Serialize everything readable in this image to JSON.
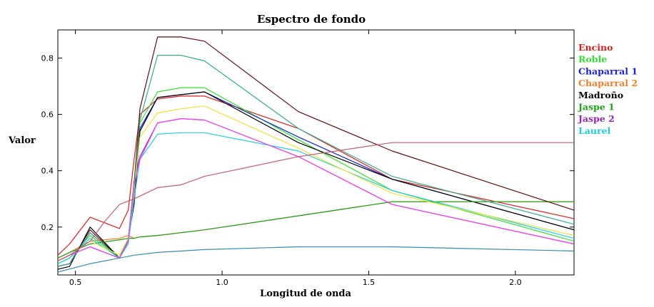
{
  "chart_data": {
    "type": "line",
    "title": "Espectro de fondo",
    "xlabel": "Longitud de onda",
    "ylabel": "Valor",
    "xlim": [
      0.44,
      2.2
    ],
    "ylim": [
      0.03,
      0.9
    ],
    "xticks": [
      0.5,
      1.0,
      1.5,
      2.0
    ],
    "xtick_labels": [
      "0.5",
      "1.0",
      "1.5",
      "2.0"
    ],
    "yticks": [
      0.2,
      0.4,
      0.6,
      0.8
    ],
    "ytick_labels": [
      "0.2",
      "0.4",
      "0.6",
      "0.8"
    ],
    "grid": false,
    "legend_position": "right",
    "series": [
      {
        "name": "Encino",
        "color": "#d42020",
        "x": [
          0.44,
          0.48,
          0.55,
          0.65,
          0.68,
          0.7,
          0.72,
          0.78,
          0.86,
          0.94,
          1.26,
          1.58,
          2.2
        ],
        "y": [
          0.1,
          0.14,
          0.235,
          0.195,
          0.26,
          0.44,
          0.6,
          0.655,
          0.665,
          0.665,
          0.55,
          0.37,
          0.23
        ]
      },
      {
        "name": "Roble",
        "color": "#33dd33",
        "x": [
          0.44,
          0.48,
          0.55,
          0.65,
          0.68,
          0.7,
          0.72,
          0.78,
          0.86,
          0.94,
          1.26,
          1.58,
          2.2
        ],
        "y": [
          0.07,
          0.09,
          0.17,
          0.09,
          0.15,
          0.36,
          0.57,
          0.68,
          0.695,
          0.695,
          0.51,
          0.33,
          0.15
        ]
      },
      {
        "name": "Chaparral 1",
        "color": "#1a24c8",
        "x": [
          0.44,
          0.48,
          0.55,
          0.65,
          0.68,
          0.7,
          0.72,
          0.78,
          0.86,
          0.94,
          1.26,
          1.58,
          2.2
        ],
        "y": [
          0.06,
          0.07,
          0.18,
          0.09,
          0.15,
          0.32,
          0.55,
          0.66,
          0.67,
          0.68,
          0.52,
          0.37,
          0.19
        ]
      },
      {
        "name": "Chaparral 2",
        "color": "#f08030",
        "x": [
          0.44,
          0.48,
          0.55,
          0.65,
          0.68,
          0.7,
          0.72,
          0.78,
          0.86,
          0.94,
          1.26,
          1.58,
          2.2
        ],
        "y": [
          0.09,
          0.11,
          0.15,
          0.16,
          0.17,
          0.16,
          0.165,
          0.17,
          0.18,
          0.19,
          0.24,
          0.29,
          0.29
        ]
      },
      {
        "name": "Madroño",
        "color": "#000000",
        "x": [
          0.44,
          0.48,
          0.55,
          0.65,
          0.68,
          0.7,
          0.72,
          0.78,
          0.86,
          0.94,
          1.26,
          1.58,
          2.2
        ],
        "y": [
          0.05,
          0.06,
          0.2,
          0.09,
          0.16,
          0.28,
          0.54,
          0.66,
          0.67,
          0.68,
          0.5,
          0.37,
          0.19
        ]
      },
      {
        "name": "Jaspe 1",
        "color": "#1e9e1e",
        "x": [
          0.44,
          0.48,
          0.55,
          0.65,
          0.68,
          0.7,
          0.72,
          0.78,
          0.86,
          0.94,
          1.26,
          1.58,
          2.2
        ],
        "y": [
          0.09,
          0.11,
          0.14,
          0.155,
          0.16,
          0.16,
          0.165,
          0.17,
          0.18,
          0.19,
          0.24,
          0.29,
          0.29
        ]
      },
      {
        "name": "Jaspe 2",
        "color": "#8a2ab0",
        "x": [
          0.44,
          0.48,
          0.55,
          0.65,
          0.68,
          0.7,
          0.72,
          0.78,
          0.86,
          0.94,
          1.26,
          1.58,
          2.2
        ],
        "y": [
          0.08,
          0.1,
          0.13,
          0.09,
          0.15,
          0.36,
          0.45,
          0.57,
          0.585,
          0.58,
          0.45,
          0.28,
          0.14
        ]
      },
      {
        "name": "Laurel",
        "color": "#22ccdd",
        "x": [
          0.44,
          0.48,
          0.55,
          0.65,
          0.68,
          0.7,
          0.72,
          0.78,
          0.86,
          0.94,
          1.26,
          1.58,
          2.2
        ],
        "y": [
          0.07,
          0.09,
          0.16,
          0.09,
          0.14,
          0.3,
          0.44,
          0.53,
          0.535,
          0.535,
          0.47,
          0.33,
          0.16
        ]
      },
      {
        "color": "#5a1010",
        "x": [
          0.44,
          0.48,
          0.55,
          0.65,
          0.68,
          0.7,
          0.72,
          0.78,
          0.86,
          0.94,
          1.26,
          1.58,
          2.2
        ],
        "y": [
          0.06,
          0.07,
          0.19,
          0.09,
          0.16,
          0.35,
          0.62,
          0.875,
          0.875,
          0.86,
          0.61,
          0.47,
          0.26
        ]
      },
      {
        "color": "#3aa88c",
        "x": [
          0.44,
          0.48,
          0.55,
          0.65,
          0.68,
          0.7,
          0.72,
          0.78,
          0.86,
          0.94,
          1.26,
          1.58,
          2.2
        ],
        "y": [
          0.06,
          0.07,
          0.18,
          0.09,
          0.16,
          0.34,
          0.58,
          0.81,
          0.81,
          0.79,
          0.55,
          0.38,
          0.21
        ]
      },
      {
        "color": "#f0e040",
        "x": [
          0.44,
          0.48,
          0.55,
          0.65,
          0.68,
          0.7,
          0.72,
          0.78,
          0.86,
          0.94,
          1.26,
          1.58,
          2.2
        ],
        "y": [
          0.08,
          0.1,
          0.15,
          0.1,
          0.16,
          0.33,
          0.52,
          0.605,
          0.62,
          0.63,
          0.48,
          0.32,
          0.17
        ]
      },
      {
        "color": "#ee44ee",
        "x": [
          0.44,
          0.48,
          0.55,
          0.65,
          0.68,
          0.7,
          0.72,
          0.78,
          0.86,
          0.94,
          1.26,
          1.58,
          2.2
        ],
        "y": [
          0.08,
          0.1,
          0.13,
          0.09,
          0.15,
          0.35,
          0.44,
          0.57,
          0.585,
          0.58,
          0.45,
          0.28,
          0.14
        ]
      },
      {
        "color": "#c06070",
        "x": [
          0.44,
          0.48,
          0.55,
          0.6,
          0.65,
          0.7,
          0.78,
          0.86,
          0.94,
          1.26,
          1.58,
          2.2
        ],
        "y": [
          0.08,
          0.1,
          0.15,
          0.22,
          0.28,
          0.3,
          0.34,
          0.35,
          0.38,
          0.45,
          0.5,
          0.5
        ]
      },
      {
        "color": "#3a8caa",
        "x": [
          0.44,
          0.55,
          0.65,
          0.7,
          0.78,
          0.86,
          0.94,
          1.26,
          1.58,
          2.2
        ],
        "y": [
          0.04,
          0.07,
          0.09,
          0.1,
          0.11,
          0.115,
          0.12,
          0.13,
          0.13,
          0.115
        ]
      }
    ]
  }
}
